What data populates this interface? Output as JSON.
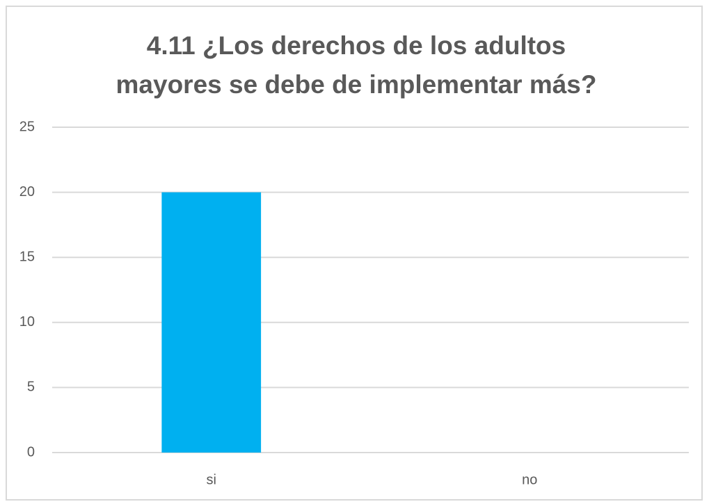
{
  "chart_data": {
    "type": "bar",
    "title": "4.11 ¿Los derechos de los adultos mayores se debe de implementar más?",
    "categories": [
      "si",
      "no"
    ],
    "values": [
      20,
      0
    ],
    "color": "#00b0f0",
    "ylim": [
      0,
      25
    ],
    "yticks": [
      0,
      5,
      10,
      15,
      20,
      25
    ],
    "grid": true
  }
}
